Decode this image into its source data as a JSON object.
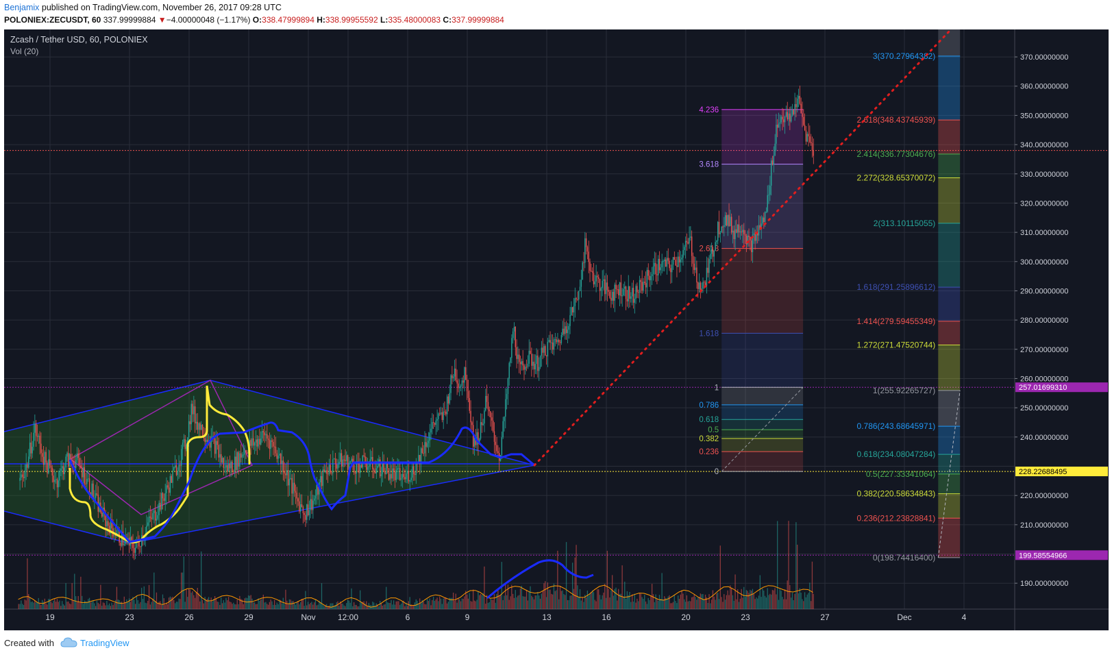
{
  "header": {
    "user": "Benjamix",
    "published_text": " published on TradingView.com, November 26, 2017 09:28 UTC",
    "symbol_interval": "POLONIEX:ZECUSDT, 60",
    "last": "337.99999884",
    "change_arrow": "▼",
    "change": "−4.00000048 (−1.17%)",
    "o_label": "O:",
    "o": "338.47999894",
    "h_label": "H:",
    "h": "338.99955592",
    "l_label": "L:",
    "l": "335.48000083",
    "c_label": "C:",
    "c": "337.99999884"
  },
  "legend": {
    "title": "Zcash / Tether USD, 60, POLONIEX",
    "vol": "Vol (20)"
  },
  "footer": {
    "created_with": "Created with",
    "brand": "TradingView"
  },
  "colors": {
    "background": "#131722",
    "grid": "#2a2e39",
    "up": "#26a69a",
    "down": "#ef5350",
    "axis_text": "#d1d4dc",
    "trendline_blue": "#1a2bff",
    "triangle_fill": "#2a5f2a",
    "yellow": "#ffeb3b",
    "purple": "#9c27b0",
    "red_dotted": "#e01e1e"
  },
  "chart_data": {
    "type": "candlestick",
    "title": "",
    "ylim": [
      181.14,
      379.39
    ],
    "y_ticks": [
      190,
      200,
      210,
      220,
      230,
      240,
      250,
      260,
      270,
      280,
      290,
      300,
      310,
      320,
      330,
      340,
      350,
      360,
      370
    ],
    "y_tick_labels": [
      "190.00000000",
      "",
      "210.00000000",
      "220.00000000",
      "",
      "240.00000000",
      "250.00000000",
      "260.00000000",
      "270.00000000",
      "280.00000000",
      "290.00000000",
      "300.00000000",
      "310.00000000",
      "320.00000000",
      "330.00000000",
      "340.00000000",
      "350.00000000",
      "360.00000000",
      "370.00000000"
    ],
    "x_ticks": [
      {
        "label": "19",
        "day": 0
      },
      {
        "label": "23",
        "day": 4
      },
      {
        "label": "26",
        "day": 7
      },
      {
        "label": "29",
        "day": 10
      },
      {
        "label": "Nov",
        "day": 13
      },
      {
        "label": "12:00",
        "day": 15
      },
      {
        "label": "6",
        "day": 18
      },
      {
        "label": "9",
        "day": 21
      },
      {
        "label": "13",
        "day": 25
      },
      {
        "label": "16",
        "day": 28
      },
      {
        "label": "20",
        "day": 32
      },
      {
        "label": "23",
        "day": 35
      },
      {
        "label": "27",
        "day": 39
      },
      {
        "label": "Dec",
        "day": 43
      },
      {
        "label": "4",
        "day": 46
      }
    ],
    "price_path": [
      [
        -1.6,
        225
      ],
      [
        -1.2,
        230
      ],
      [
        -0.8,
        243
      ],
      [
        -0.3,
        232
      ],
      [
        0.3,
        225
      ],
      [
        0.8,
        232
      ],
      [
        1.3,
        232
      ],
      [
        1.8,
        226
      ],
      [
        2.3,
        218
      ],
      [
        2.8,
        211
      ],
      [
        3.3,
        207
      ],
      [
        3.8,
        204
      ],
      [
        4.3,
        202
      ],
      [
        4.8,
        209
      ],
      [
        5.3,
        214
      ],
      [
        5.8,
        221
      ],
      [
        6.3,
        229
      ],
      [
        6.8,
        238
      ],
      [
        7.1,
        250
      ],
      [
        7.3,
        246
      ],
      [
        7.8,
        241
      ],
      [
        8.3,
        237
      ],
      [
        8.8,
        229
      ],
      [
        9.3,
        231
      ],
      [
        9.8,
        236
      ],
      [
        10.3,
        238
      ],
      [
        10.8,
        241
      ],
      [
        11.3,
        236
      ],
      [
        11.8,
        229
      ],
      [
        12.3,
        220
      ],
      [
        12.8,
        214
      ],
      [
        13.3,
        219
      ],
      [
        13.8,
        228
      ],
      [
        14.3,
        231
      ],
      [
        14.8,
        232
      ],
      [
        15.3,
        230
      ],
      [
        15.8,
        231
      ],
      [
        16.3,
        230
      ],
      [
        16.8,
        229
      ],
      [
        17.3,
        227
      ],
      [
        17.8,
        226
      ],
      [
        18.3,
        229
      ],
      [
        18.8,
        237
      ],
      [
        19.3,
        245
      ],
      [
        19.8,
        247
      ],
      [
        20.3,
        263
      ],
      [
        20.6,
        258
      ],
      [
        20.9,
        262
      ],
      [
        21.3,
        238
      ],
      [
        21.6,
        241
      ],
      [
        21.9,
        252
      ],
      [
        22.3,
        241
      ],
      [
        22.6,
        233
      ],
      [
        22.9,
        250
      ],
      [
        23.3,
        278
      ],
      [
        23.6,
        262
      ],
      [
        24.0,
        267
      ],
      [
        24.5,
        265
      ],
      [
        25.0,
        271
      ],
      [
        25.5,
        272
      ],
      [
        26.0,
        279
      ],
      [
        26.5,
        287
      ],
      [
        26.9,
        305
      ],
      [
        27.3,
        295
      ],
      [
        27.7,
        292
      ],
      [
        28.2,
        289
      ],
      [
        28.7,
        291
      ],
      [
        29.2,
        288
      ],
      [
        29.7,
        291
      ],
      [
        30.2,
        296
      ],
      [
        30.7,
        299
      ],
      [
        31.2,
        298
      ],
      [
        31.7,
        302
      ],
      [
        32.2,
        307
      ],
      [
        32.5,
        295
      ],
      [
        32.8,
        290
      ],
      [
        33.2,
        300
      ],
      [
        33.6,
        312
      ],
      [
        34.0,
        315
      ],
      [
        34.4,
        310
      ],
      [
        34.8,
        313
      ],
      [
        35.2,
        305
      ],
      [
        35.6,
        310
      ],
      [
        36.0,
        316
      ],
      [
        36.5,
        345
      ],
      [
        36.8,
        350
      ],
      [
        37.2,
        348
      ],
      [
        37.6,
        356
      ],
      [
        38.0,
        344
      ],
      [
        38.4,
        338
      ]
    ],
    "volume_path": [
      [
        -1.6,
        0.15
      ],
      [
        -1.0,
        0.35
      ],
      [
        -0.5,
        0.25
      ],
      [
        0.5,
        0.2
      ],
      [
        1.5,
        0.3
      ],
      [
        2.5,
        0.15
      ],
      [
        3.5,
        0.25
      ],
      [
        4.5,
        0.3
      ],
      [
        5.5,
        0.2
      ],
      [
        6.5,
        0.35
      ],
      [
        7.2,
        0.5
      ],
      [
        8.0,
        0.3
      ],
      [
        9.0,
        0.25
      ],
      [
        10.0,
        0.3
      ],
      [
        11.0,
        0.2
      ],
      [
        12.0,
        0.25
      ],
      [
        13.0,
        0.2
      ],
      [
        14.0,
        0.15
      ],
      [
        15.0,
        0.2
      ],
      [
        16.0,
        0.15
      ],
      [
        17.0,
        0.2
      ],
      [
        18.0,
        0.18
      ],
      [
        19.0,
        0.25
      ],
      [
        20.0,
        0.3
      ],
      [
        21.0,
        0.45
      ],
      [
        22.0,
        0.3
      ],
      [
        23.0,
        0.55
      ],
      [
        24.0,
        0.45
      ],
      [
        25.0,
        0.6
      ],
      [
        26.0,
        0.45
      ],
      [
        27.0,
        0.4
      ],
      [
        28.0,
        0.55
      ],
      [
        29.0,
        0.4
      ],
      [
        30.0,
        0.3
      ],
      [
        31.0,
        0.35
      ],
      [
        32.0,
        0.4
      ],
      [
        33.0,
        0.35
      ],
      [
        34.0,
        0.5
      ],
      [
        35.0,
        0.45
      ],
      [
        36.0,
        0.5
      ],
      [
        37.0,
        0.6
      ],
      [
        38.0,
        0.45
      ],
      [
        38.4,
        0.35
      ]
    ],
    "horizontal_lines": [
      {
        "price": 338.0,
        "color": "#ef5350",
        "dash": "2,2"
      },
      {
        "price": 257.0169931,
        "color": "#9c27b0",
        "dash": "2,2"
      },
      {
        "price": 228.22688495,
        "color": "#ffeb3b",
        "dash": "2,2"
      },
      {
        "price": 199.58554966,
        "color": "#9c27b0",
        "dash": "2,2"
      }
    ],
    "price_tags": [
      {
        "price": 257.0169931,
        "label": "257.01699310",
        "bg": "#9c27b0",
        "fg": "#ffffff"
      },
      {
        "price": 228.22688495,
        "label": "228.22688495",
        "bg": "#ffeb3b",
        "fg": "#000000"
      },
      {
        "price": 199.58554966,
        "label": "199.58554966",
        "bg": "#9c27b0",
        "fg": "#ffffff"
      }
    ],
    "fib_extension_left": {
      "day_start": 33.8,
      "day_end": 37.9,
      "levels": [
        {
          "label": "4.236",
          "price": 352.0,
          "color": "#e040fb"
        },
        {
          "label": "3.618",
          "price": 333.3,
          "color": "#b388ff"
        },
        {
          "label": "2.618",
          "price": 304.5,
          "color": "#ef5350"
        },
        {
          "label": "1.618",
          "price": 275.5,
          "color": "#3f51b5"
        },
        {
          "label": "1",
          "price": 257.0,
          "color": "#b2b5be"
        },
        {
          "label": "0.786",
          "price": 251.0,
          "color": "#2196f3"
        },
        {
          "label": "0.618",
          "price": 246.0,
          "color": "#26a69a"
        },
        {
          "label": "0.5",
          "price": 242.5,
          "color": "#4caf50"
        },
        {
          "label": "0.382",
          "price": 239.5,
          "color": "#cddc39"
        },
        {
          "label": "0.236",
          "price": 235.0,
          "color": "#ef5350"
        },
        {
          "label": "0",
          "price": 228.2,
          "color": "#b2b5be"
        }
      ]
    },
    "fib_extension_right": {
      "day_start": 44.7,
      "day_end": 45.8,
      "levels": [
        {
          "label": "3(370.27964382)",
          "price": 370.27964382,
          "color": "#2196f3"
        },
        {
          "label": "2.618(348.43745939)",
          "price": 348.43745939,
          "color": "#ef5350"
        },
        {
          "label": "2.414(336.77304676)",
          "price": 336.77304676,
          "color": "#4caf50"
        },
        {
          "label": "2.272(328.65370072)",
          "price": 328.65370072,
          "color": "#cddc39"
        },
        {
          "label": "2(313.10115055)",
          "price": 313.10115055,
          "color": "#26a69a"
        },
        {
          "label": "1.618(291.25896612)",
          "price": 291.25896612,
          "color": "#3f51b5"
        },
        {
          "label": "1.414(279.59455349)",
          "price": 279.59455349,
          "color": "#ef5350"
        },
        {
          "label": "1.272(271.47520744)",
          "price": 271.47520744,
          "color": "#cddc39"
        },
        {
          "label": "1(255.92265727)",
          "price": 255.92265727,
          "color": "#9598a1"
        },
        {
          "label": "0.786(243.68645971)",
          "price": 243.68645971,
          "color": "#2196f3"
        },
        {
          "label": "0.618(234.08047284)",
          "price": 234.08047284,
          "color": "#26a69a"
        },
        {
          "label": "0.5(227.33341064)",
          "price": 227.33341064,
          "color": "#4caf50"
        },
        {
          "label": "0.382(220.58634843)",
          "price": 220.58634843,
          "color": "#cddc39"
        },
        {
          "label": "0.236(212.23828841)",
          "price": 212.23828841,
          "color": "#ef5350"
        },
        {
          "label": "0(198.74416400)",
          "price": 198.744164,
          "color": "#9598a1"
        }
      ]
    }
  }
}
